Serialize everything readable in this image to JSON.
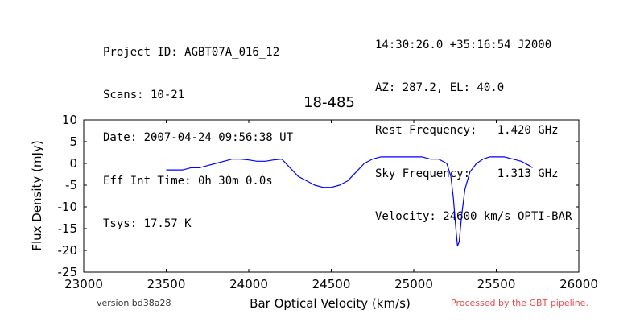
{
  "header_left": [
    "Project ID: AGBT07A_016_12",
    "Scans: 10-21",
    "Date: 2007-04-24 09:56:38 UT",
    "Eff Int Time: 0h 30m 0.0s",
    "Tsys: 17.57 K"
  ],
  "header_right": [
    "14:30:26.0 +35:16:54 J2000",
    "AZ: 287.2, EL: 40.0",
    "Rest Frequency:   1.420 GHz",
    "Sky Frequency:    1.313 GHz",
    "Velocity: 24600 km/s OPTI-BAR"
  ],
  "footer": {
    "version": "version bd38a28",
    "pipeline": "Processed by the GBT pipeline."
  },
  "colors": {
    "series": "#0000ff",
    "pipeline_note": "#e84a4a"
  },
  "chart_data": {
    "type": "line",
    "title": "18-485",
    "xlabel": "Bar Optical Velocity (km/s)",
    "ylabel": "Flux Density (mJy)",
    "xlim": [
      23000,
      26000
    ],
    "ylim": [
      -25,
      10
    ],
    "xticks": [
      23000,
      23500,
      24000,
      24500,
      25000,
      25500,
      26000
    ],
    "yticks": [
      10,
      5,
      0,
      -5,
      -10,
      -15,
      -20,
      -25
    ],
    "grid": false,
    "series": [
      {
        "x": [
          23500,
          23550,
          23600,
          23650,
          23700,
          23750,
          23800,
          23850,
          23900,
          23950,
          24000,
          24050,
          24100,
          24150,
          24200,
          24250,
          24300,
          24350,
          24400,
          24450,
          24500,
          24550,
          24600,
          24650,
          24700,
          24750,
          24800,
          24850,
          24900,
          24950,
          25000,
          25050,
          25100,
          25150,
          25200,
          25225,
          25240,
          25255,
          25265,
          25275,
          25290,
          25310,
          25340,
          25380,
          25420,
          25460,
          25500,
          25550,
          25600,
          25650,
          25700,
          25720
        ],
        "y": [
          -1.5,
          -1.5,
          -1.5,
          -1,
          -1,
          -0.5,
          0,
          0.5,
          1,
          1,
          0.8,
          0.5,
          0.5,
          0.8,
          1,
          -1,
          -3,
          -4,
          -5,
          -5.5,
          -5.5,
          -5,
          -4,
          -2,
          0,
          1,
          1.5,
          1.5,
          1.5,
          1.5,
          1.5,
          1.5,
          1,
          1,
          0,
          -3,
          -8,
          -15,
          -19,
          -18,
          -12,
          -6,
          -2,
          0,
          1,
          1.5,
          1.5,
          1.5,
          1,
          0.5,
          -0.5,
          -1
        ]
      }
    ]
  }
}
